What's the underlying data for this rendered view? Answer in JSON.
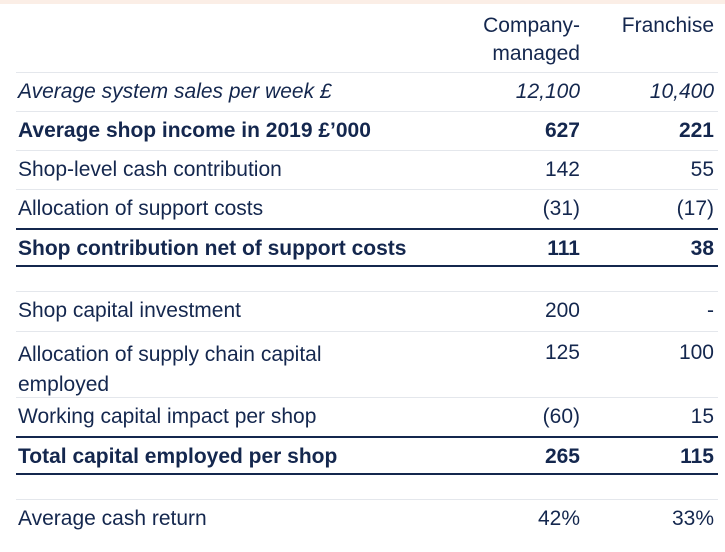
{
  "header": {
    "col_company": "Company-\nmanaged",
    "col_franchise": "Franchise"
  },
  "rows": [
    {
      "label": "Average system sales per week £",
      "company": "12,100",
      "franchise": "10,400"
    },
    {
      "label": "Average shop income in 2019 £’000",
      "company": "627",
      "franchise": "221"
    },
    {
      "label": "Shop-level cash contribution",
      "company": "142",
      "franchise": "55"
    },
    {
      "label": "Allocation of support costs",
      "company": "(31)",
      "franchise": "(17)"
    },
    {
      "label": "Shop contribution net of support costs",
      "company": "111",
      "franchise": "38"
    },
    {
      "label": "Shop capital investment",
      "company": "200",
      "franchise": "-"
    },
    {
      "label": "Allocation of supply chain capital employed",
      "company": "125",
      "franchise": "100"
    },
    {
      "label": "Working capital impact per shop",
      "company": "(60)",
      "franchise": "15"
    },
    {
      "label": "Total capital employed per shop",
      "company": "265",
      "franchise": "115"
    },
    {
      "label": "Average cash return",
      "company": "42%",
      "franchise": "33%"
    }
  ]
}
